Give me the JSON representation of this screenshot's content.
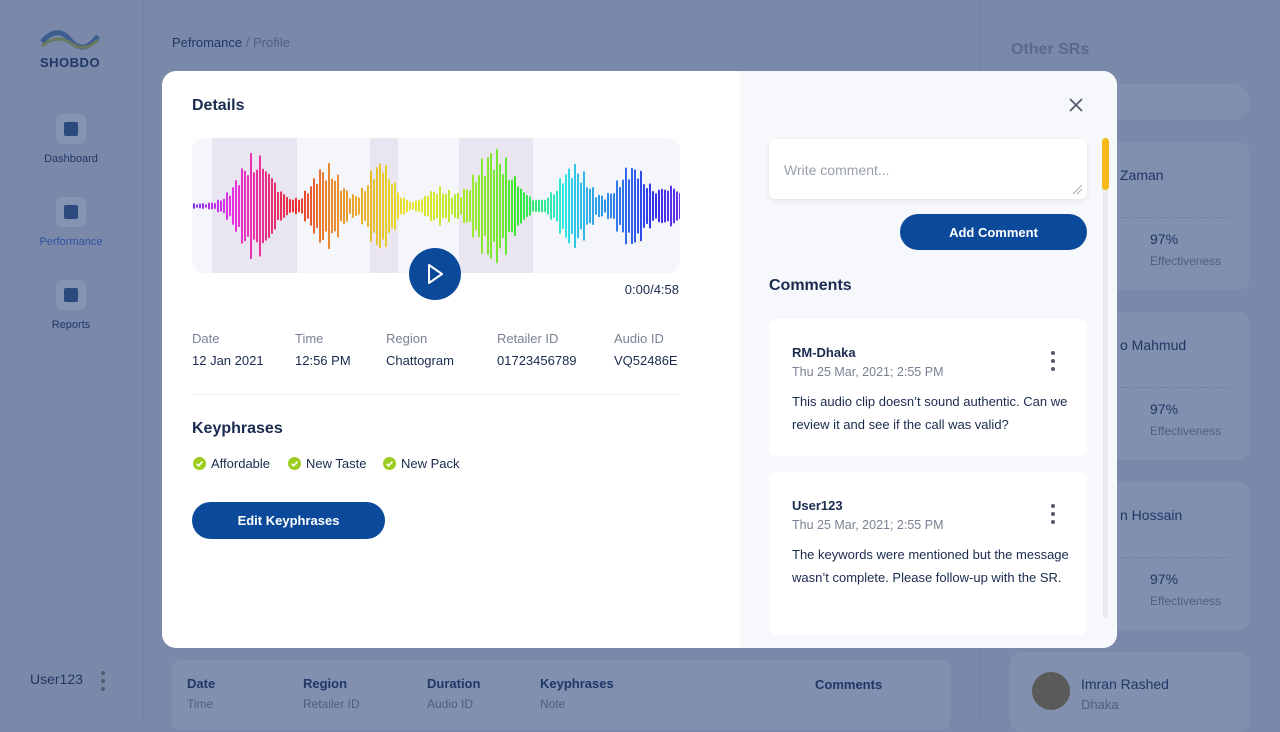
{
  "sidebar": {
    "logo": "SHOBDO",
    "nav": [
      "Dashboard",
      "Performance",
      "Reports"
    ],
    "user": "User123"
  },
  "breadcrumb": {
    "parent": "Pefromance",
    "separator": "/",
    "current": "Profile"
  },
  "other_srs": {
    "title": "Other SRs",
    "cards": [
      {
        "name": "Zaman",
        "score": "97%",
        "score_label": "Effectiveness"
      },
      {
        "name": "o Mahmud",
        "score": "97%",
        "score_label": "Effectiveness"
      },
      {
        "name": "n Hossain",
        "score": "97%",
        "score_label": "Effectiveness"
      }
    ],
    "last_card": {
      "name": "Imran Rashed",
      "location": "Dhaka"
    }
  },
  "table_header": {
    "columns": [
      {
        "title": "Date",
        "sub": "Time"
      },
      {
        "title": "Region",
        "sub": "Retailer ID"
      },
      {
        "title": "Duration",
        "sub": "Audio ID"
      },
      {
        "title": "Keyphrases",
        "sub": "Note"
      }
    ],
    "comments": "Comments"
  },
  "modal": {
    "title": "Details",
    "audio_time": "0:00/4:58",
    "fields": [
      {
        "label": "Date",
        "value": "12 Jan 2021"
      },
      {
        "label": "Time",
        "value": "12:56 PM"
      },
      {
        "label": "Region",
        "value": "Chattogram"
      },
      {
        "label": "Retailer ID",
        "value": "01723456789"
      },
      {
        "label": "Audio ID",
        "value": "VQ52486E"
      }
    ],
    "keyphrases_title": "Keyphrases",
    "keyphrases": [
      "Affordable",
      "New Taste",
      "New Pack"
    ],
    "edit_button": "Edit Keyphrases",
    "comment_placeholder": "Write comment...",
    "add_button": "Add Comment",
    "comments_title": "Comments",
    "comments": [
      {
        "author": "RM-Dhaka",
        "date": "Thu 25 Mar, 2021; 2:55 PM",
        "text": "This audio clip doesn’t sound authentic. Can we review it and see if the call was valid?"
      },
      {
        "author": "User123",
        "date": "Thu 25 Mar, 2021; 2:55 PM",
        "text": "The keywords were mentioned but the message wasn’t complete. Please follow-up with the SR."
      }
    ]
  }
}
